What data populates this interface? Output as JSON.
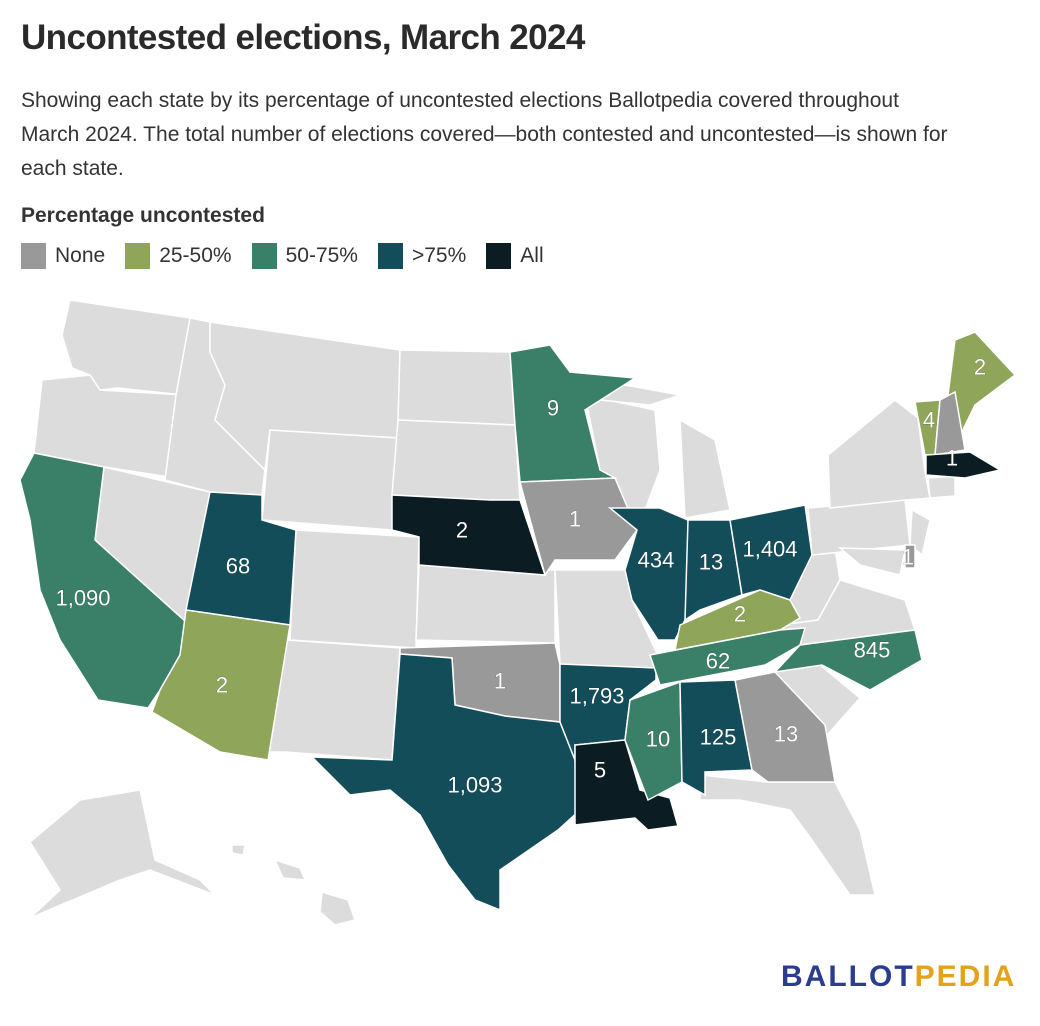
{
  "title": "Uncontested elections, March 2024",
  "subtitle": "Showing each state by its percentage of uncontested elections Ballotpedia covered throughout March 2024. The total number of elections covered—both contested and uncontested—is shown for each state.",
  "legend": {
    "title": "Percentage uncontested",
    "items": [
      {
        "label": "None",
        "color": "#999999"
      },
      {
        "label": "25-50%",
        "color": "#8fa55a"
      },
      {
        "label": "50-75%",
        "color": "#3a7f68"
      },
      {
        "label": ">75%",
        "color": "#134d5a"
      },
      {
        "label": "All",
        "color": "#0b1c22"
      }
    ]
  },
  "no_data_color": "#dcdcdc",
  "states": [
    {
      "state": "California",
      "category": "50-75%",
      "label": "1,090"
    },
    {
      "state": "Utah",
      "category": ">75%",
      "label": "68"
    },
    {
      "state": "Arizona",
      "category": "25-50%",
      "label": "2"
    },
    {
      "state": "Nebraska",
      "category": "All",
      "label": "2"
    },
    {
      "state": "Minnesota",
      "category": "50-75%",
      "label": "9"
    },
    {
      "state": "Iowa",
      "category": "None",
      "label": "1"
    },
    {
      "state": "Oklahoma",
      "category": "None",
      "label": "1"
    },
    {
      "state": "Texas",
      "category": ">75%",
      "label": "1,093"
    },
    {
      "state": "Arkansas",
      "category": ">75%",
      "label": "1,793"
    },
    {
      "state": "Louisiana",
      "category": "All",
      "label": "5"
    },
    {
      "state": "Illinois",
      "category": ">75%",
      "label": "434"
    },
    {
      "state": "Indiana",
      "category": ">75%",
      "label": "13"
    },
    {
      "state": "Ohio",
      "category": ">75%",
      "label": "1,404"
    },
    {
      "state": "Kentucky",
      "category": "25-50%",
      "label": "2"
    },
    {
      "state": "Tennessee",
      "category": "50-75%",
      "label": "62"
    },
    {
      "state": "Mississippi",
      "category": "50-75%",
      "label": "10"
    },
    {
      "state": "Alabama",
      "category": ">75%",
      "label": "125"
    },
    {
      "state": "Georgia",
      "category": "None",
      "label": "13"
    },
    {
      "state": "North Carolina",
      "category": "50-75%",
      "label": "845"
    },
    {
      "state": "Maine",
      "category": "25-50%",
      "label": "2"
    },
    {
      "state": "Vermont",
      "category": "25-50%",
      "label": "4"
    },
    {
      "state": "New Hampshire",
      "category": "None",
      "label": ""
    },
    {
      "state": "Massachusetts",
      "category": "All",
      "label": "1"
    },
    {
      "state": "Delaware",
      "category": "None",
      "label": "1"
    }
  ],
  "logo": {
    "part1": "BALLOT",
    "part2": "PEDIA"
  }
}
